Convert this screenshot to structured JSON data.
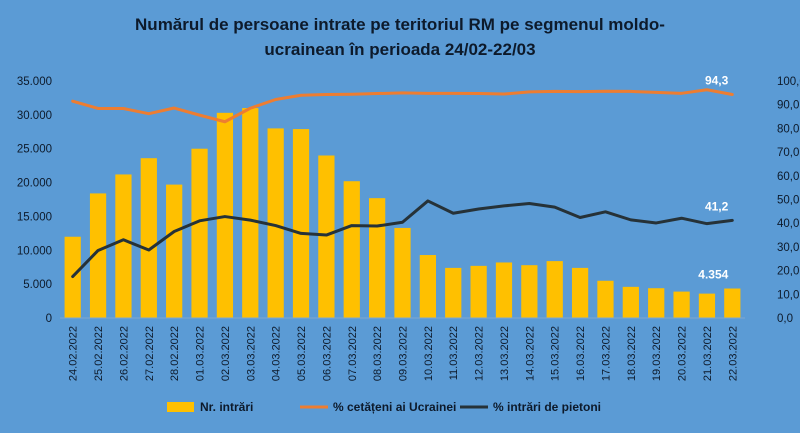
{
  "chart_data": {
    "type": "bar",
    "title_lines": [
      "Numărul de persoane intrate pe teritoriul RM pe segmenul moldo-",
      "ucrainean în perioada 24/02-22/03"
    ],
    "categories": [
      "24.02.2022",
      "25.02.2022",
      "26.02.2022",
      "27.02.2022",
      "28.02.2022",
      "01.03.2022",
      "02.03.2022",
      "03.03.2022",
      "04.03.2022",
      "05.03.2022",
      "06.03.2022",
      "07.03.2022",
      "08.03.2022",
      "09.03.2022",
      "10.03.2022",
      "11.03.2022",
      "12.03.2022",
      "13.03.2022",
      "14.03.2022",
      "15.03.2022",
      "16.03.2022",
      "17.03.2022",
      "18.03.2022",
      "19.03.2022",
      "20.03.2022",
      "21.03.2022",
      "22.03.2022"
    ],
    "series": [
      {
        "name": "Nr. intrări",
        "type": "bar",
        "axis": "left",
        "color": "#FFC000",
        "values": [
          12000,
          18400,
          21200,
          23600,
          19700,
          25000,
          30300,
          31000,
          28000,
          27900,
          24000,
          20200,
          17700,
          13300,
          9300,
          7400,
          7700,
          8200,
          7800,
          8400,
          7400,
          5500,
          4600,
          4400,
          3900,
          3600,
          4354
        ]
      },
      {
        "name": "% cetățeni ai Ucrainei",
        "type": "line",
        "axis": "right",
        "color": "#ED7D31",
        "values": [
          91.5,
          88.4,
          88.4,
          86.2,
          88.6,
          85.6,
          82.8,
          88.5,
          92.2,
          94.0,
          94.3,
          94.4,
          94.7,
          95.0,
          94.8,
          94.8,
          94.7,
          94.5,
          95.4,
          95.6,
          95.5,
          95.7,
          95.6,
          95.2,
          94.8,
          96.3,
          94.3
        ]
      },
      {
        "name": "% intrări de pietoni",
        "type": "line",
        "axis": "right",
        "color": "#263238",
        "values": [
          17.5,
          28.5,
          33.0,
          28.7,
          36.5,
          41.0,
          42.8,
          41.3,
          39.0,
          35.7,
          35.0,
          39.0,
          38.8,
          40.4,
          49.4,
          44.2,
          46.0,
          47.3,
          48.3,
          46.8,
          42.4,
          44.8,
          41.4,
          40.1,
          42.1,
          39.8,
          41.2
        ]
      }
    ],
    "y_left": {
      "range": [
        0,
        35000
      ],
      "ticks": [
        0,
        5000,
        10000,
        15000,
        20000,
        25000,
        30000,
        35000
      ],
      "tick_labels": [
        "0",
        "5.000",
        "10.000",
        "15.000",
        "20.000",
        "25.000",
        "30.000",
        "35.000"
      ]
    },
    "y_right": {
      "range": [
        0,
        100
      ],
      "ticks": [
        0,
        10,
        20,
        30,
        40,
        50,
        60,
        70,
        80,
        90,
        100
      ],
      "tick_labels": [
        "0,0",
        "10,0",
        "20,0",
        "30,0",
        "40,0",
        "50,0",
        "60,0",
        "70,0",
        "80,0",
        "90,0",
        "100,0"
      ]
    },
    "annotations": [
      {
        "text": "94,3",
        "series": "% cetățeni ai Ucrainei",
        "index": 26
      },
      {
        "text": "41,2",
        "series": "% intrări de pietoni",
        "index": 26
      },
      {
        "text": "4.354",
        "series": "Nr. intrări",
        "index": 26
      }
    ],
    "grid": false,
    "legend_position": "bottom",
    "colors": {
      "background": "#5B9BD5",
      "text": "#0D1A2B",
      "annotation": "#FFFFFF"
    }
  }
}
